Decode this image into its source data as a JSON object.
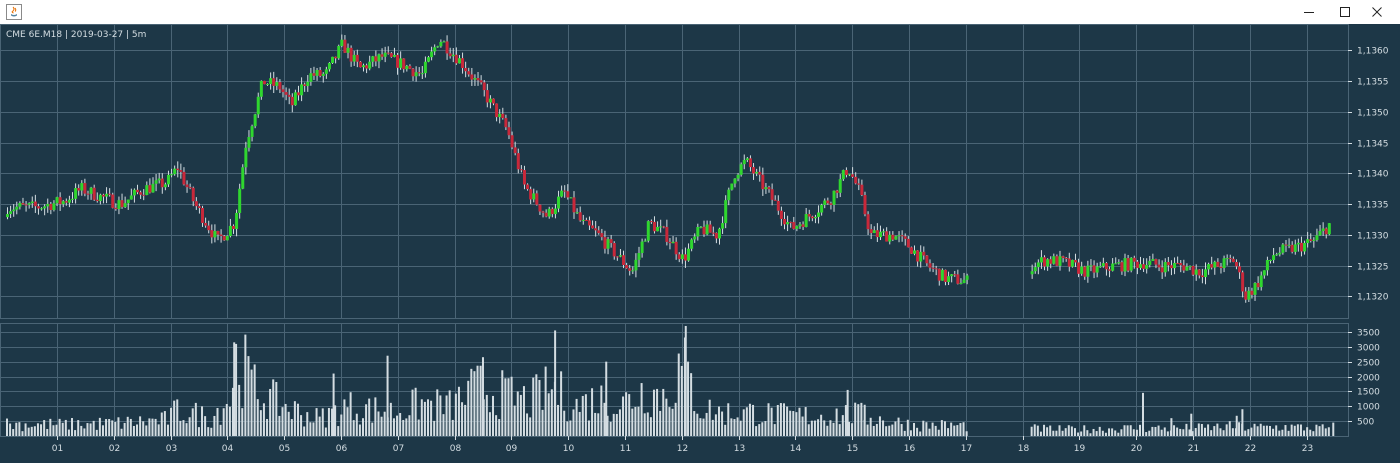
{
  "window": {
    "title": ""
  },
  "chart_info": "CME 6E.M18 | 2019-03-27 | 5m",
  "colors": {
    "background": "#1d3747",
    "grid": "#4a6475",
    "up": "#2fd62f",
    "down": "#c8283a",
    "wick": "#d4dde2",
    "volume": "#d4dde2",
    "text": "#d4dde2"
  },
  "chart_data": [
    {
      "type": "candlestick",
      "title": "CME 6E.M18 | 2019-03-27 | 5m",
      "x_tick_labels": [
        "01",
        "02",
        "03",
        "04",
        "05",
        "06",
        "07",
        "08",
        "09",
        "10",
        "11",
        "12",
        "13",
        "14",
        "15",
        "16",
        "17",
        "18",
        "19",
        "20",
        "21",
        "22",
        "23"
      ],
      "y_tick_labels": [
        "1,1320",
        "1,1325",
        "1,1330",
        "1,1335",
        "1,1340",
        "1,1345",
        "1,1350",
        "1,1355",
        "1,1360"
      ],
      "ylim": [
        1.13165,
        1.13643
      ],
      "grid": true,
      "gap": {
        "from_session": 17,
        "to_session": 18
      },
      "series": [
        {
          "name": "",
          "close_path": [
            [
              0.0,
              1.13345
            ],
            [
              0.5,
              1.13345
            ],
            [
              1.0,
              1.13355
            ],
            [
              1.3,
              1.13375
            ],
            [
              1.7,
              1.1336
            ],
            [
              2.0,
              1.1335
            ],
            [
              2.4,
              1.13375
            ],
            [
              2.8,
              1.13385
            ],
            [
              3.0,
              1.1341
            ],
            [
              3.3,
              1.1335
            ],
            [
              3.7,
              1.1329
            ],
            [
              4.0,
              1.1332
            ],
            [
              4.2,
              1.1345
            ],
            [
              4.5,
              1.1355
            ],
            [
              4.8,
              1.1354
            ],
            [
              5.0,
              1.1351
            ],
            [
              5.3,
              1.1356
            ],
            [
              5.6,
              1.1356
            ],
            [
              5.9,
              1.1361
            ],
            [
              6.2,
              1.1357
            ],
            [
              6.6,
              1.1359
            ],
            [
              6.9,
              1.1358
            ],
            [
              7.3,
              1.1356
            ],
            [
              7.6,
              1.1362
            ],
            [
              8.0,
              1.1358
            ],
            [
              8.4,
              1.1353
            ],
            [
              8.8,
              1.1347
            ],
            [
              9.1,
              1.1338
            ],
            [
              9.5,
              1.1333
            ],
            [
              9.8,
              1.1337
            ],
            [
              10.1,
              1.1332
            ],
            [
              10.4,
              1.133
            ],
            [
              10.7,
              1.1327
            ],
            [
              11.0,
              1.1324
            ],
            [
              11.3,
              1.1332
            ],
            [
              11.6,
              1.133
            ],
            [
              11.9,
              1.1326
            ],
            [
              12.2,
              1.1331
            ],
            [
              12.5,
              1.133
            ],
            [
              12.8,
              1.134
            ],
            [
              13.0,
              1.1342
            ],
            [
              13.3,
              1.1338
            ],
            [
              13.6,
              1.1334
            ],
            [
              13.8,
              1.1331
            ],
            [
              14.1,
              1.1333
            ],
            [
              14.5,
              1.1336
            ],
            [
              14.8,
              1.1341
            ],
            [
              15.0,
              1.1337
            ],
            [
              15.2,
              1.133
            ],
            [
              15.6,
              1.133
            ],
            [
              15.9,
              1.1328
            ],
            [
              16.2,
              1.1325
            ],
            [
              16.5,
              1.1323
            ],
            [
              16.9,
              1.13225
            ],
            [
              18.0,
              1.1325
            ],
            [
              18.3,
              1.1326
            ],
            [
              18.6,
              1.13255
            ],
            [
              19.0,
              1.1324
            ],
            [
              19.5,
              1.1325
            ],
            [
              20.0,
              1.13255
            ],
            [
              20.3,
              1.1325
            ],
            [
              20.7,
              1.1325
            ],
            [
              21.0,
              1.1324
            ],
            [
              21.3,
              1.1325
            ],
            [
              21.6,
              1.1326
            ],
            [
              21.8,
              1.132
            ],
            [
              22.0,
              1.1322
            ],
            [
              22.3,
              1.1327
            ],
            [
              22.7,
              1.1328
            ],
            [
              23.0,
              1.1329
            ],
            [
              23.3,
              1.1332
            ]
          ]
        }
      ]
    },
    {
      "type": "bar",
      "title": "",
      "y_tick_labels": [
        "500",
        "1000",
        "1500",
        "2000",
        "2500",
        "3000",
        "3500"
      ],
      "ylim": [
        0,
        3800
      ],
      "series": [
        {
          "name": "",
          "level_path": [
            [
              0.0,
              450
            ],
            [
              1.0,
              420
            ],
            [
              2.0,
              480
            ],
            [
              2.8,
              600
            ],
            [
              3.0,
              950
            ],
            [
              3.6,
              700
            ],
            [
              3.95,
              1500
            ],
            [
              4.05,
              3000
            ],
            [
              4.4,
              1600
            ],
            [
              5.0,
              1000
            ],
            [
              5.5,
              650
            ],
            [
              6.0,
              1100
            ],
            [
              6.8,
              900
            ],
            [
              7.3,
              1200
            ],
            [
              7.8,
              1100
            ],
            [
              8.3,
              1800
            ],
            [
              8.8,
              1500
            ],
            [
              9.2,
              1300
            ],
            [
              9.6,
              1800
            ],
            [
              10.0,
              1100
            ],
            [
              10.4,
              1400
            ],
            [
              10.8,
              1150
            ],
            [
              11.2,
              1700
            ],
            [
              11.6,
              1500
            ],
            [
              11.9,
              2600
            ],
            [
              12.2,
              1050
            ],
            [
              12.6,
              850
            ],
            [
              13.0,
              900
            ],
            [
              13.5,
              800
            ],
            [
              14.0,
              750
            ],
            [
              14.6,
              800
            ],
            [
              15.0,
              800
            ],
            [
              15.5,
              550
            ],
            [
              16.0,
              420
            ],
            [
              16.9,
              380
            ],
            [
              18.0,
              280
            ],
            [
              18.6,
              250
            ],
            [
              19.0,
              260
            ],
            [
              19.5,
              280
            ],
            [
              20.0,
              300
            ],
            [
              20.5,
              280
            ],
            [
              21.0,
              300
            ],
            [
              21.5,
              350
            ],
            [
              22.0,
              320
            ],
            [
              22.5,
              340
            ],
            [
              23.0,
              300
            ],
            [
              23.3,
              280
            ]
          ],
          "spikes": [
            [
              4.0,
              3150
            ],
            [
              8.38,
              2650
            ],
            [
              9.65,
              3550
            ],
            [
              11.95,
              3700
            ],
            [
              5.75,
              2100
            ],
            [
              6.7,
              2700
            ],
            [
              10.55,
              2500
            ],
            [
              14.8,
              1550
            ],
            [
              15.1,
              1050
            ],
            [
              20.0,
              1450
            ],
            [
              20.5,
              600
            ],
            [
              20.85,
              750
            ],
            [
              21.65,
              680
            ],
            [
              21.75,
              900
            ],
            [
              23.35,
              450
            ]
          ]
        }
      ]
    }
  ]
}
